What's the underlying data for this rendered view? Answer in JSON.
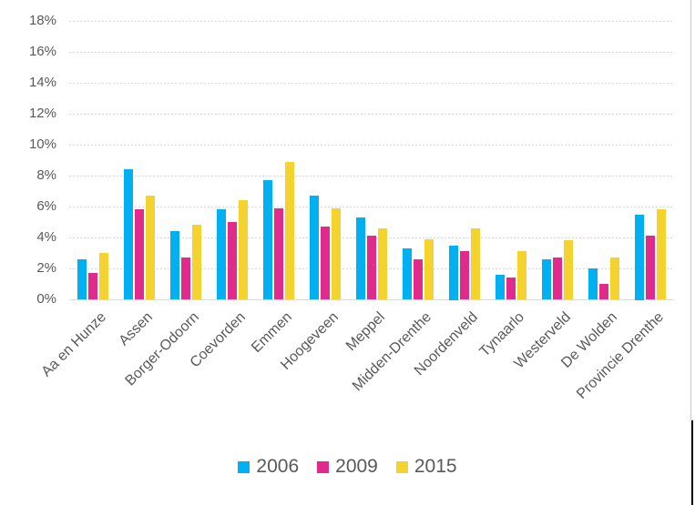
{
  "chart_data": {
    "type": "bar",
    "title": "",
    "xlabel": "",
    "ylabel": "",
    "categories": [
      "Aa en Hunze",
      "Assen",
      "Borger-Odoorn",
      "Coevorden",
      "Emmen",
      "Hoogeveen",
      "Meppel",
      "Midden-Drenthe",
      "Noordenveld",
      "Tynaarlo",
      "Westerveld",
      "De Wolden",
      "Provincie Drenthe"
    ],
    "series": [
      {
        "name": "2006",
        "color": "#00B0F0",
        "values": [
          2.6,
          8.4,
          4.4,
          5.8,
          7.7,
          6.7,
          5.3,
          3.3,
          3.5,
          1.6,
          2.6,
          2.0,
          5.5
        ]
      },
      {
        "name": "2009",
        "color": "#E02B8D",
        "values": [
          1.7,
          5.8,
          2.7,
          5.0,
          5.9,
          4.7,
          4.1,
          2.6,
          3.1,
          1.4,
          2.7,
          1.0,
          4.1
        ]
      },
      {
        "name": "2015",
        "color": "#F5D32E",
        "values": [
          3.0,
          6.7,
          4.8,
          6.4,
          8.9,
          5.9,
          4.6,
          3.9,
          4.6,
          3.1,
          3.8,
          2.7,
          5.8
        ]
      }
    ],
    "ylim": [
      0,
      18
    ],
    "y_tick_step": 2,
    "y_tick_labels": [
      "0%",
      "2%",
      "4%",
      "6%",
      "8%",
      "10%",
      "12%",
      "14%",
      "16%",
      "18%"
    ],
    "y_tick_suffix": "%",
    "grid": true,
    "gridline_style": "dashed",
    "legend_position": "bottom",
    "x_label_rotation_deg": 45
  },
  "colors": {
    "axis_text": "#595959",
    "gridline": "#D9D9D9",
    "background": "#FFFFFF"
  }
}
